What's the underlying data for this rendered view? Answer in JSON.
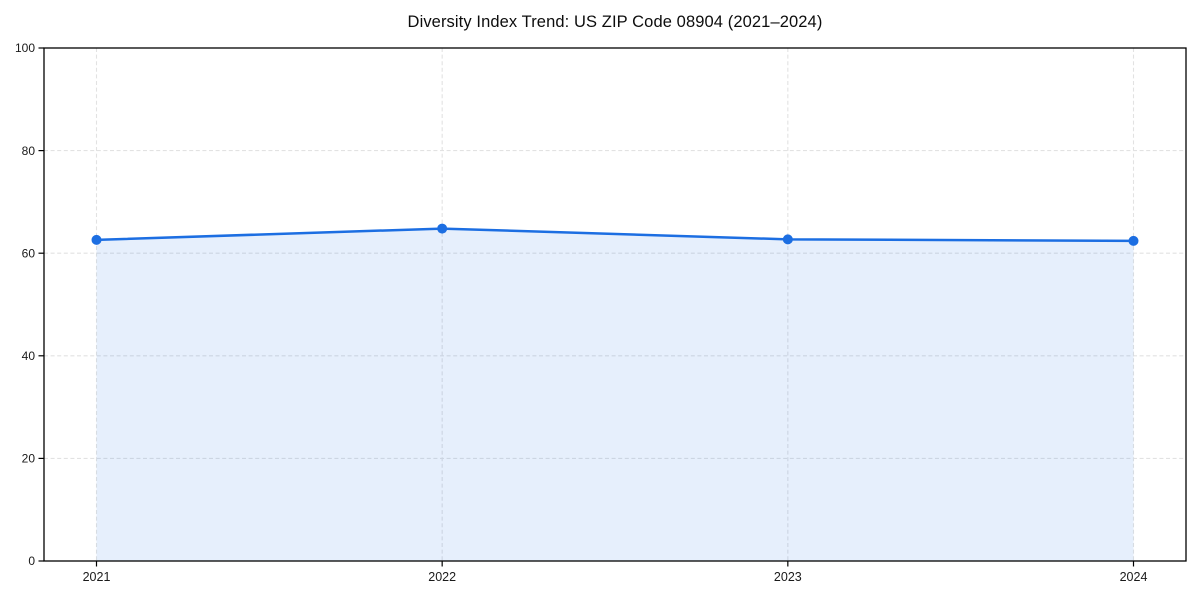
{
  "chart_data": {
    "type": "area",
    "title": "Diversity Index Trend: US ZIP Code 08904 (2021–2024)",
    "x": [
      "2021",
      "2022",
      "2023",
      "2024"
    ],
    "series": [
      {
        "name": "Diversity Index",
        "values": [
          62.6,
          64.8,
          62.7,
          62.4
        ]
      }
    ],
    "xlabel": "",
    "ylabel": "",
    "ylim": [
      0,
      100
    ],
    "yticks": [
      0,
      20,
      40,
      60,
      80,
      100
    ],
    "grid": true,
    "legend_position": "none",
    "line_color": "#1c6ee2",
    "fill_color": "rgba(28,110,226,0.11)",
    "grid_color": "#e2e2e2",
    "axis_color": "#000000",
    "marker": "circle"
  }
}
